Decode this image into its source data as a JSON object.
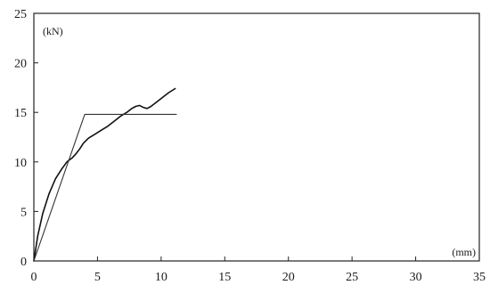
{
  "chart_data": {
    "type": "line",
    "x_unit_label": "(mm)",
    "y_unit_label": "(kN)",
    "xlim": [
      0,
      35
    ],
    "ylim": [
      0,
      25
    ],
    "x_ticks": [
      0,
      5,
      10,
      15,
      20,
      25,
      30,
      35
    ],
    "y_ticks": [
      0,
      5,
      10,
      15,
      20,
      25
    ],
    "x_tick_labels": [
      "0",
      "5",
      "10",
      "15",
      "20",
      "25",
      "30",
      "35"
    ],
    "y_tick_labels": [
      "0",
      "5",
      "10",
      "15",
      "20",
      "25"
    ],
    "grid": false,
    "legend": "none",
    "series": [
      {
        "color": "#111111",
        "style": "solid-thick",
        "x": [
          0,
          0.3,
          0.7,
          1.2,
          1.7,
          2.2,
          2.6,
          3.0,
          3.3,
          3.6,
          3.9,
          4.3,
          4.8,
          5.3,
          5.8,
          6.3,
          6.8,
          7.3,
          7.7,
          8.0,
          8.3,
          8.6,
          8.9,
          9.2,
          9.6,
          10.1,
          10.6,
          11.1
        ],
        "y": [
          0,
          2.5,
          4.8,
          6.8,
          8.3,
          9.3,
          10.0,
          10.4,
          10.8,
          11.3,
          11.9,
          12.4,
          12.8,
          13.2,
          13.6,
          14.1,
          14.6,
          15.0,
          15.4,
          15.6,
          15.7,
          15.5,
          15.4,
          15.6,
          16.0,
          16.5,
          17.0,
          17.4
        ]
      },
      {
        "color": "#333333",
        "style": "solid-thin",
        "x": [
          0,
          4.0,
          11.2
        ],
        "y": [
          0,
          14.8,
          14.8
        ]
      }
    ]
  }
}
